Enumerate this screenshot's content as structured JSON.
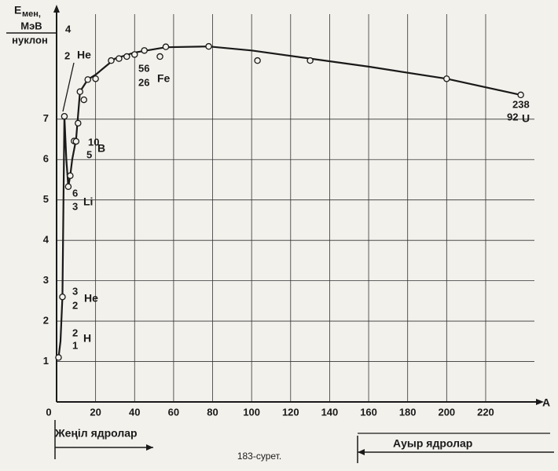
{
  "chart_data": {
    "type": "line",
    "y_label": {
      "symbol": "E",
      "subscript": "мен,",
      "unit": "МэВ",
      "denominator": "нуклон"
    },
    "x_label": "A",
    "xlim": [
      0,
      245
    ],
    "ylim": [
      0,
      9.6
    ],
    "xticks": [
      0,
      20,
      40,
      60,
      80,
      100,
      120,
      140,
      160,
      180,
      200,
      220
    ],
    "yticks": [
      1,
      2,
      3,
      4,
      5,
      6,
      7
    ],
    "grid": true,
    "color": "#1a1a1a",
    "curve": {
      "x": [
        1,
        2,
        3,
        4,
        5,
        6,
        7,
        8,
        10,
        12,
        16,
        20,
        30,
        40,
        56,
        78,
        100,
        130,
        160,
        200,
        238
      ],
      "values": [
        1.1,
        1.5,
        2.6,
        7.07,
        6.0,
        5.33,
        5.6,
        6.0,
        6.5,
        7.68,
        7.98,
        8.1,
        8.5,
        8.65,
        8.78,
        8.8,
        8.7,
        8.5,
        8.3,
        8.0,
        7.6
      ]
    },
    "points": {
      "x": [
        1,
        3,
        4,
        6,
        7,
        9,
        10,
        11,
        12,
        14,
        16,
        20,
        28,
        32,
        36,
        40,
        45,
        53,
        56,
        78,
        103,
        130,
        200,
        238
      ],
      "values": [
        1.1,
        2.6,
        7.07,
        5.33,
        5.6,
        6.46,
        6.45,
        6.9,
        7.68,
        7.48,
        7.98,
        8.0,
        8.45,
        8.5,
        8.55,
        8.6,
        8.7,
        8.55,
        8.79,
        8.8,
        8.45,
        8.45,
        8.0,
        7.6
      ]
    },
    "annotations": [
      {
        "mass": "4",
        "charge": "2",
        "symbol": "He"
      },
      {
        "mass": "56",
        "charge": "26",
        "symbol": "Fe"
      },
      {
        "mass": "238",
        "charge": "92",
        "symbol": "U"
      },
      {
        "mass": "10",
        "charge": "5",
        "symbol": "B"
      },
      {
        "mass": "6",
        "charge": "3",
        "symbol": "Li"
      },
      {
        "mass": "3",
        "charge": "2",
        "symbol": "He"
      },
      {
        "mass": "2",
        "charge": "1",
        "symbol": "H"
      }
    ],
    "light_nuclei": "Жеңіл ядролар",
    "heavy_nuclei": "Ауыр ядролар",
    "caption": "183-сурет."
  }
}
